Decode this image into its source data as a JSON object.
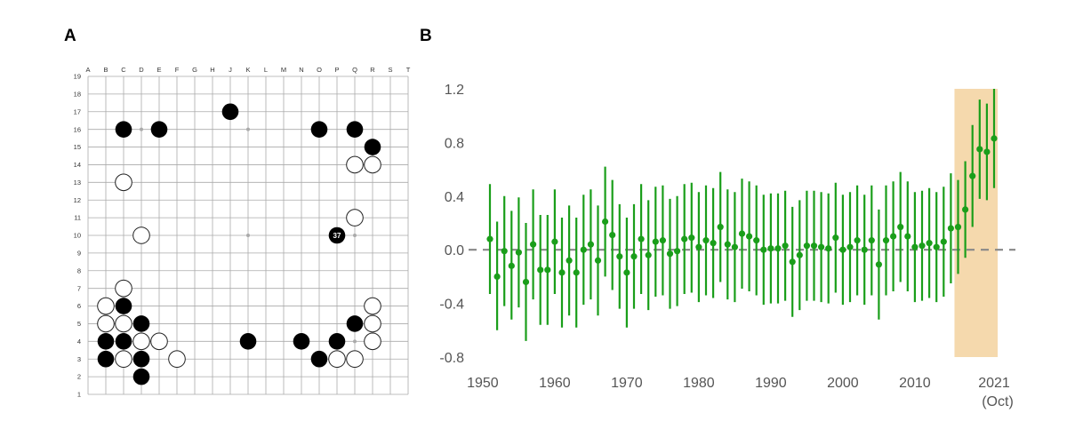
{
  "panels": {
    "a": "A",
    "b": "B"
  },
  "go_board": {
    "columns": [
      "A",
      "B",
      "C",
      "D",
      "E",
      "F",
      "G",
      "H",
      "J",
      "K",
      "L",
      "M",
      "N",
      "O",
      "P",
      "Q",
      "R",
      "S",
      "T"
    ],
    "rows": 19,
    "hoshi": [
      [
        "D",
        16
      ],
      [
        "K",
        16
      ],
      [
        "Q",
        16
      ],
      [
        "D",
        10
      ],
      [
        "K",
        10
      ],
      [
        "Q",
        10
      ],
      [
        "D",
        4
      ],
      [
        "K",
        4
      ],
      [
        "Q",
        4
      ]
    ],
    "black_stones": [
      [
        "C",
        16
      ],
      [
        "E",
        16
      ],
      [
        "J",
        17
      ],
      [
        "O",
        16
      ],
      [
        "Q",
        16
      ],
      [
        "R",
        15
      ],
      [
        "P",
        10
      ],
      [
        "C",
        6
      ],
      [
        "D",
        5
      ],
      [
        "B",
        4
      ],
      [
        "C",
        4
      ],
      [
        "B",
        3
      ],
      [
        "D",
        3
      ],
      [
        "D",
        2
      ],
      [
        "K",
        4
      ],
      [
        "N",
        4
      ],
      [
        "P",
        4
      ],
      [
        "Q",
        5
      ],
      [
        "O",
        3
      ]
    ],
    "white_stones": [
      [
        "Q",
        14
      ],
      [
        "R",
        14
      ],
      [
        "C",
        13
      ],
      [
        "Q",
        11
      ],
      [
        "D",
        10
      ],
      [
        "C",
        7
      ],
      [
        "B",
        6
      ],
      [
        "R",
        6
      ],
      [
        "B",
        5
      ],
      [
        "C",
        5
      ],
      [
        "R",
        5
      ],
      [
        "D",
        4
      ],
      [
        "E",
        4
      ],
      [
        "R",
        4
      ],
      [
        "C",
        3
      ],
      [
        "F",
        3
      ],
      [
        "P",
        3
      ],
      [
        "Q",
        3
      ]
    ],
    "move_label": {
      "point": [
        "P",
        10
      ],
      "text": "37"
    }
  },
  "chart_data": {
    "type": "errorbar",
    "colors": {
      "series": "#1a9e1a",
      "highlight": "#f5d9ad",
      "zero_line": "#888888"
    },
    "ylim": [
      -0.8,
      1.2
    ],
    "xlim": [
      1948,
      2022
    ],
    "yticks": [
      "1.2",
      "0.8",
      "0.4",
      "0.0",
      "-0.4",
      "-0.8"
    ],
    "xticks": [
      {
        "value": 1950,
        "label": "1950"
      },
      {
        "value": 1960,
        "label": "1960"
      },
      {
        "value": 1970,
        "label": "1970"
      },
      {
        "value": 1980,
        "label": "1980"
      },
      {
        "value": 1990,
        "label": "1990"
      },
      {
        "value": 2000,
        "label": "2000"
      },
      {
        "value": 2010,
        "label": "2010"
      },
      {
        "value": 2021,
        "label": "2021",
        "sublabel": "(Oct)"
      }
    ],
    "highlight_range": [
      2015.5,
      2021.5
    ],
    "zero_line": 0,
    "points": [
      [
        1951,
        0.08,
        -0.33,
        0.49
      ],
      [
        1952,
        -0.2,
        -0.6,
        0.21
      ],
      [
        1953,
        -0.01,
        -0.42,
        0.4
      ],
      [
        1954,
        -0.12,
        -0.52,
        0.29
      ],
      [
        1955,
        -0.02,
        -0.43,
        0.39
      ],
      [
        1956,
        -0.24,
        -0.68,
        0.2
      ],
      [
        1957,
        0.04,
        -0.37,
        0.45
      ],
      [
        1958,
        -0.15,
        -0.56,
        0.26
      ],
      [
        1959,
        -0.15,
        -0.56,
        0.26
      ],
      [
        1960,
        0.06,
        -0.33,
        0.45
      ],
      [
        1961,
        -0.17,
        -0.58,
        0.24
      ],
      [
        1962,
        -0.08,
        -0.49,
        0.33
      ],
      [
        1963,
        -0.17,
        -0.58,
        0.24
      ],
      [
        1964,
        0.0,
        -0.41,
        0.41
      ],
      [
        1965,
        0.04,
        -0.37,
        0.45
      ],
      [
        1966,
        -0.08,
        -0.49,
        0.33
      ],
      [
        1967,
        0.21,
        -0.2,
        0.62
      ],
      [
        1968,
        0.11,
        -0.3,
        0.52
      ],
      [
        1969,
        -0.05,
        -0.44,
        0.34
      ],
      [
        1970,
        -0.17,
        -0.58,
        0.24
      ],
      [
        1971,
        -0.05,
        -0.44,
        0.34
      ],
      [
        1972,
        0.08,
        -0.33,
        0.49
      ],
      [
        1973,
        -0.04,
        -0.45,
        0.37
      ],
      [
        1974,
        0.06,
        -0.35,
        0.47
      ],
      [
        1975,
        0.07,
        -0.34,
        0.48
      ],
      [
        1976,
        -0.03,
        -0.44,
        0.38
      ],
      [
        1977,
        -0.01,
        -0.42,
        0.4
      ],
      [
        1978,
        0.08,
        -0.33,
        0.49
      ],
      [
        1979,
        0.09,
        -0.32,
        0.5
      ],
      [
        1980,
        0.02,
        -0.39,
        0.43
      ],
      [
        1981,
        0.07,
        -0.34,
        0.48
      ],
      [
        1982,
        0.05,
        -0.36,
        0.46
      ],
      [
        1983,
        0.17,
        -0.24,
        0.58
      ],
      [
        1984,
        0.04,
        -0.37,
        0.45
      ],
      [
        1985,
        0.02,
        -0.39,
        0.43
      ],
      [
        1986,
        0.12,
        -0.29,
        0.53
      ],
      [
        1987,
        0.1,
        -0.31,
        0.51
      ],
      [
        1988,
        0.07,
        -0.34,
        0.48
      ],
      [
        1989,
        0.0,
        -0.41,
        0.41
      ],
      [
        1990,
        0.01,
        -0.4,
        0.42
      ],
      [
        1991,
        0.01,
        -0.4,
        0.42
      ],
      [
        1992,
        0.03,
        -0.38,
        0.44
      ],
      [
        1993,
        -0.09,
        -0.5,
        0.32
      ],
      [
        1994,
        -0.04,
        -0.45,
        0.37
      ],
      [
        1995,
        0.03,
        -0.38,
        0.44
      ],
      [
        1996,
        0.03,
        -0.38,
        0.44
      ],
      [
        1997,
        0.02,
        -0.39,
        0.43
      ],
      [
        1998,
        0.01,
        -0.4,
        0.42
      ],
      [
        1999,
        0.09,
        -0.32,
        0.5
      ],
      [
        2000,
        0.0,
        -0.41,
        0.41
      ],
      [
        2001,
        0.02,
        -0.39,
        0.43
      ],
      [
        2002,
        0.07,
        -0.34,
        0.48
      ],
      [
        2003,
        0.0,
        -0.41,
        0.41
      ],
      [
        2004,
        0.07,
        -0.34,
        0.48
      ],
      [
        2005,
        -0.11,
        -0.52,
        0.3
      ],
      [
        2006,
        0.07,
        -0.34,
        0.48
      ],
      [
        2007,
        0.1,
        -0.31,
        0.51
      ],
      [
        2008,
        0.17,
        -0.24,
        0.58
      ],
      [
        2009,
        0.1,
        -0.31,
        0.51
      ],
      [
        2010,
        0.02,
        -0.39,
        0.43
      ],
      [
        2011,
        0.03,
        -0.38,
        0.44
      ],
      [
        2012,
        0.05,
        -0.36,
        0.46
      ],
      [
        2013,
        0.02,
        -0.39,
        0.43
      ],
      [
        2014,
        0.06,
        -0.35,
        0.47
      ],
      [
        2015,
        0.16,
        -0.25,
        0.57
      ],
      [
        2016,
        0.17,
        -0.18,
        0.52
      ],
      [
        2017,
        0.3,
        -0.06,
        0.66
      ],
      [
        2018,
        0.55,
        0.17,
        0.93
      ],
      [
        2019,
        0.75,
        0.38,
        1.12
      ],
      [
        2020,
        0.73,
        0.37,
        1.09
      ],
      [
        2021,
        0.83,
        0.46,
        1.2
      ]
    ]
  }
}
